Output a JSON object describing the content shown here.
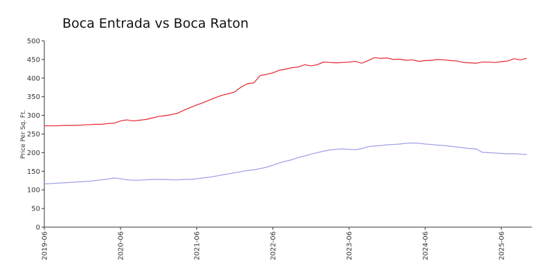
{
  "chart_data": {
    "type": "line",
    "title": "Boca Entrada vs Boca Raton",
    "y_label": "Price Per Sq. Ft.",
    "x": [
      "2019-06",
      "2019-07",
      "2019-08",
      "2019-09",
      "2019-10",
      "2019-11",
      "2019-12",
      "2020-01",
      "2020-02",
      "2020-03",
      "2020-04",
      "2020-05",
      "2020-06",
      "2020-07",
      "2020-08",
      "2020-09",
      "2020-10",
      "2020-11",
      "2020-12",
      "2021-01",
      "2021-02",
      "2021-03",
      "2021-04",
      "2021-05",
      "2021-06",
      "2021-07",
      "2021-08",
      "2021-09",
      "2021-10",
      "2021-11",
      "2021-12",
      "2022-01",
      "2022-02",
      "2022-03",
      "2022-04",
      "2022-05",
      "2022-06",
      "2022-07",
      "2022-08",
      "2022-09",
      "2022-10",
      "2022-11",
      "2022-12",
      "2023-01",
      "2023-02",
      "2023-03",
      "2023-04",
      "2023-05",
      "2023-06",
      "2023-07",
      "2023-08",
      "2023-09",
      "2023-10",
      "2023-11",
      "2023-12",
      "2024-01",
      "2024-02",
      "2024-03",
      "2024-04",
      "2024-05",
      "2024-06",
      "2024-07",
      "2024-08",
      "2024-09",
      "2024-10",
      "2024-11",
      "2024-12",
      "2025-01",
      "2025-02",
      "2025-03",
      "2025-04",
      "2025-05",
      "2025-06",
      "2025-07",
      "2025-08",
      "2025-09",
      "2025-10"
    ],
    "series": [
      {
        "color": "#e8212b",
        "values": [
          272,
          272,
          272,
          273,
          273,
          273,
          274,
          275,
          276,
          276,
          278,
          279,
          285,
          288,
          285,
          287,
          289,
          293,
          297,
          299,
          302,
          306,
          314,
          321,
          328,
          334,
          341,
          348,
          354,
          358,
          363,
          376,
          385,
          387,
          407,
          410,
          414,
          421,
          424,
          428,
          430,
          436,
          433,
          436,
          443,
          442,
          441,
          442,
          443,
          445,
          440,
          447,
          455,
          453,
          454,
          450,
          451,
          448,
          449,
          445,
          447,
          448,
          450,
          449,
          447,
          446,
          442,
          441,
          440,
          443,
          443,
          442,
          444,
          446,
          452,
          449,
          453
        ]
      },
      {
        "color": "#9c9ce8",
        "values": [
          116,
          117,
          118,
          119,
          120,
          121,
          122,
          123,
          125,
          127,
          129,
          132,
          130,
          127,
          126,
          126,
          127,
          128,
          128,
          128,
          127,
          127,
          128,
          128,
          130,
          132,
          134,
          137,
          140,
          143,
          146,
          149,
          152,
          154,
          157,
          161,
          166,
          172,
          177,
          181,
          187,
          191,
          196,
          200,
          204,
          207,
          209,
          210,
          209,
          208,
          211,
          216,
          218,
          219,
          221,
          222,
          223,
          225,
          226,
          225,
          223,
          222,
          220,
          219,
          217,
          215,
          213,
          211,
          210,
          201,
          200,
          199,
          198,
          197,
          197,
          196,
          195
        ]
      }
    ],
    "xticks": [
      "2019-06",
      "2020-06",
      "2021-06",
      "2022-06",
      "2023-06",
      "2024-06",
      "2025-06"
    ],
    "ylim": [
      0,
      500
    ],
    "yticks": [
      0,
      50,
      100,
      150,
      200,
      250,
      300,
      350,
      400,
      450,
      500
    ],
    "grid": false
  }
}
